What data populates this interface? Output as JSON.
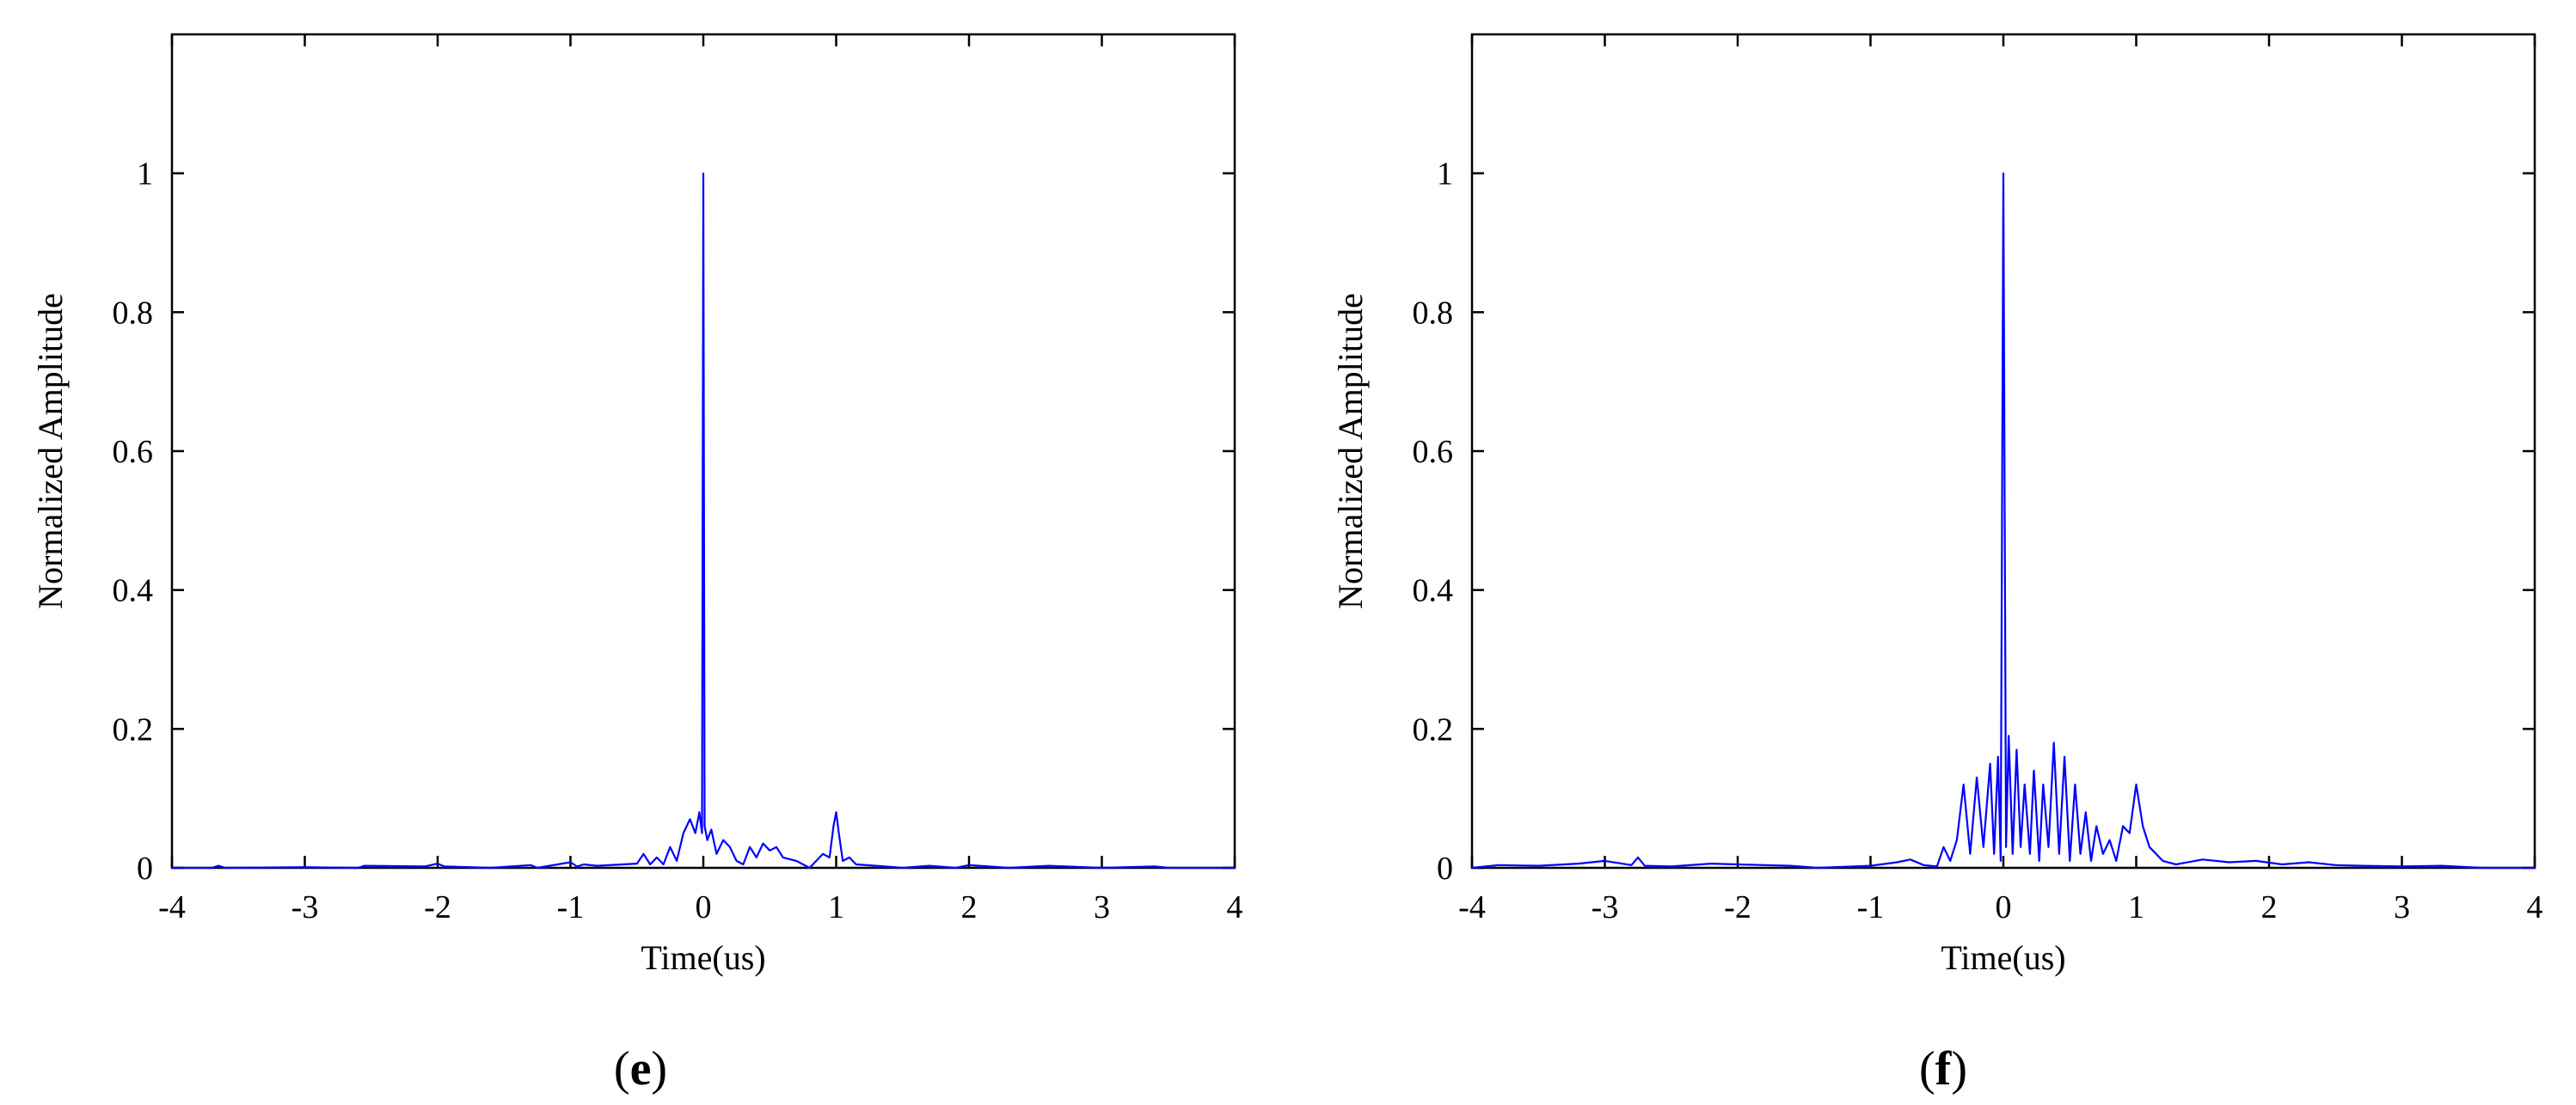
{
  "chart_data": [
    {
      "type": "line",
      "panel_label": "e",
      "xlabel": "Time(us)",
      "ylabel": "Normalized Amplitude",
      "xlim": [
        -4,
        4
      ],
      "ylim": [
        0,
        1.2
      ],
      "x_ticks": [
        "-4",
        "-3",
        "-2",
        "-1",
        "0",
        "1",
        "2",
        "3",
        "4"
      ],
      "y_ticks": [
        "0",
        "0.2",
        "0.4",
        "0.6",
        "0.8",
        "1"
      ],
      "grid": false,
      "line_color": "#0000ff",
      "series": [
        {
          "x": [
            -4.0,
            -3.7,
            -3.65,
            -3.6,
            -3.0,
            -2.6,
            -2.55,
            -2.1,
            -2.0,
            -1.95,
            -1.6,
            -1.3,
            -1.25,
            -1.0,
            -0.95,
            -0.9,
            -0.8,
            -0.5,
            -0.45,
            -0.4,
            -0.35,
            -0.3,
            -0.25,
            -0.2,
            -0.15,
            -0.1,
            -0.06,
            -0.03,
            -0.01,
            0.0,
            0.01,
            0.03,
            0.06,
            0.1,
            0.15,
            0.2,
            0.25,
            0.3,
            0.35,
            0.4,
            0.45,
            0.5,
            0.55,
            0.6,
            0.7,
            0.8,
            0.9,
            0.95,
            0.98,
            1.0,
            1.02,
            1.05,
            1.1,
            1.15,
            1.3,
            1.5,
            1.7,
            1.9,
            2.0,
            2.3,
            2.6,
            3.0,
            3.4,
            3.5,
            4.0
          ],
          "y": [
            0.0,
            0.0,
            0.003,
            0.0,
            0.001,
            0.0,
            0.003,
            0.002,
            0.006,
            0.002,
            0.0,
            0.004,
            0.0,
            0.008,
            0.002,
            0.005,
            0.003,
            0.006,
            0.02,
            0.005,
            0.015,
            0.005,
            0.03,
            0.01,
            0.05,
            0.07,
            0.05,
            0.08,
            0.05,
            1.0,
            0.06,
            0.04,
            0.055,
            0.02,
            0.04,
            0.03,
            0.01,
            0.005,
            0.03,
            0.015,
            0.035,
            0.025,
            0.03,
            0.015,
            0.01,
            0.0,
            0.02,
            0.015,
            0.06,
            0.08,
            0.05,
            0.01,
            0.015,
            0.005,
            0.003,
            0.0,
            0.003,
            0.0,
            0.004,
            0.0,
            0.003,
            0.0,
            0.002,
            0.0,
            0.0
          ]
        }
      ]
    },
    {
      "type": "line",
      "panel_label": "f",
      "xlabel": "Time(us)",
      "ylabel": "Normalized Amplitude",
      "xlim": [
        -4,
        4
      ],
      "ylim": [
        0,
        1.2
      ],
      "x_ticks": [
        "-4",
        "-3",
        "-2",
        "-1",
        "0",
        "1",
        "2",
        "3",
        "4"
      ],
      "y_ticks": [
        "0",
        "0.2",
        "0.4",
        "0.6",
        "0.8",
        "1"
      ],
      "grid": false,
      "line_color": "#0000ff",
      "series": [
        {
          "x": [
            -4.0,
            -3.8,
            -3.5,
            -3.2,
            -3.0,
            -2.8,
            -2.75,
            -2.7,
            -2.5,
            -2.2,
            -2.0,
            -1.8,
            -1.6,
            -1.4,
            -1.0,
            -0.8,
            -0.7,
            -0.6,
            -0.5,
            -0.45,
            -0.4,
            -0.35,
            -0.3,
            -0.25,
            -0.2,
            -0.15,
            -0.1,
            -0.07,
            -0.04,
            -0.02,
            0.0,
            0.02,
            0.04,
            0.07,
            0.1,
            0.13,
            0.16,
            0.2,
            0.23,
            0.27,
            0.3,
            0.34,
            0.38,
            0.42,
            0.46,
            0.5,
            0.54,
            0.58,
            0.62,
            0.66,
            0.7,
            0.75,
            0.8,
            0.85,
            0.9,
            0.95,
            1.0,
            1.05,
            1.1,
            1.15,
            1.2,
            1.3,
            1.5,
            1.7,
            1.9,
            2.1,
            2.3,
            2.5,
            2.7,
            3.0,
            3.3,
            3.6,
            4.0
          ],
          "y": [
            0.0,
            0.004,
            0.003,
            0.006,
            0.01,
            0.004,
            0.015,
            0.003,
            0.002,
            0.006,
            0.005,
            0.004,
            0.003,
            0.0,
            0.003,
            0.008,
            0.012,
            0.004,
            0.002,
            0.03,
            0.01,
            0.04,
            0.12,
            0.02,
            0.13,
            0.03,
            0.15,
            0.02,
            0.16,
            0.01,
            1.0,
            0.03,
            0.19,
            0.02,
            0.17,
            0.03,
            0.12,
            0.02,
            0.14,
            0.01,
            0.12,
            0.03,
            0.18,
            0.02,
            0.16,
            0.01,
            0.12,
            0.02,
            0.08,
            0.01,
            0.06,
            0.02,
            0.04,
            0.01,
            0.06,
            0.05,
            0.12,
            0.06,
            0.03,
            0.02,
            0.01,
            0.005,
            0.012,
            0.008,
            0.01,
            0.005,
            0.008,
            0.004,
            0.003,
            0.002,
            0.003,
            0.0,
            0.0
          ]
        }
      ]
    }
  ]
}
